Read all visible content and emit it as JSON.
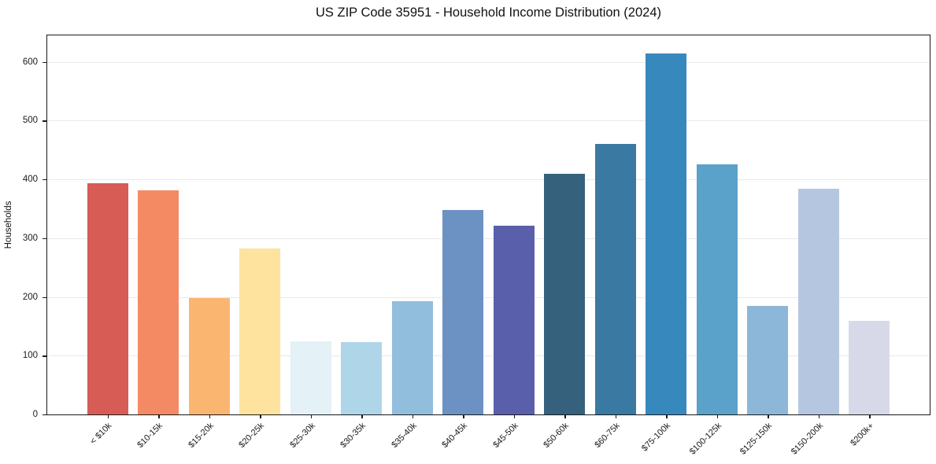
{
  "figure": {
    "title": "US ZIP Code 35951 - Household Income Distribution (2024)",
    "ylabel": "Households"
  },
  "chart_data": {
    "type": "bar",
    "title": "US ZIP Code 35951 - Household Income Distribution (2024)",
    "xlabel": "",
    "ylabel": "Households",
    "categories": [
      "< $10k",
      "$10-15k",
      "$15-20k",
      "$20-25k",
      "$25-30k",
      "$30-35k",
      "$35-40k",
      "$40-45k",
      "$45-50k",
      "$50-60k",
      "$60-75k",
      "$75-100k",
      "$100-125k",
      "$125-150k",
      "$150-200k",
      "$200k+"
    ],
    "values": [
      393,
      382,
      198,
      282,
      125,
      123,
      193,
      348,
      321,
      409,
      460,
      614,
      425,
      185,
      384,
      159
    ],
    "bar_colors": [
      "#d65c55",
      "#f48a64",
      "#fab671",
      "#fde39e",
      "#e4f1f6",
      "#aed6e8",
      "#92bedd",
      "#6c92c4",
      "#5a5fac",
      "#36617c",
      "#3a7aa2",
      "#3789bd",
      "#5aa2c9",
      "#8cb7d8",
      "#b5c7e0",
      "#d8d9e8"
    ],
    "yticks": [
      0,
      100,
      200,
      300,
      400,
      500,
      600
    ],
    "ylim": [
      0,
      645
    ],
    "grid": "horizontal-only",
    "legend": "none",
    "x_tick_rotation_deg": 45,
    "colors": {
      "background": "#ffffff",
      "spine": "#1a1a1a",
      "gridline": "#e9e9e9",
      "text": "#1a1a1a"
    }
  }
}
